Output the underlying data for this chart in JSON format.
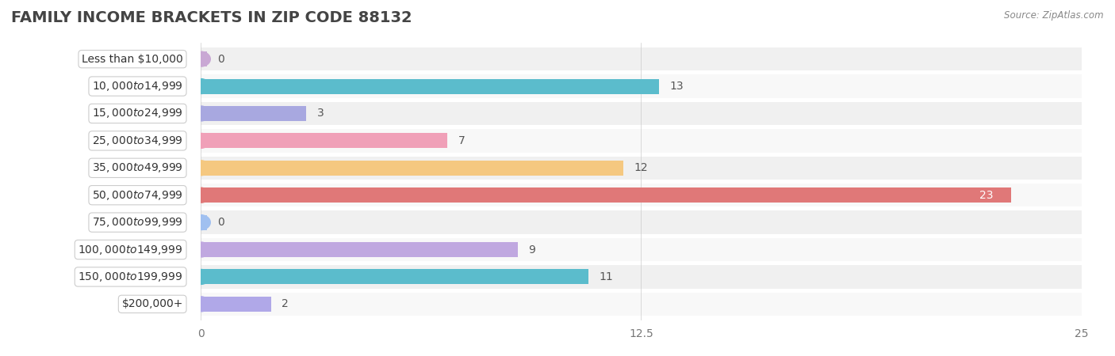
{
  "title": "FAMILY INCOME BRACKETS IN ZIP CODE 88132",
  "source": "Source: ZipAtlas.com",
  "categories": [
    "Less than $10,000",
    "$10,000 to $14,999",
    "$15,000 to $24,999",
    "$25,000 to $34,999",
    "$35,000 to $49,999",
    "$50,000 to $74,999",
    "$75,000 to $99,999",
    "$100,000 to $149,999",
    "$150,000 to $199,999",
    "$200,000+"
  ],
  "values": [
    0,
    13,
    3,
    7,
    12,
    23,
    0,
    9,
    11,
    2
  ],
  "bar_colors": [
    "#c9a8d4",
    "#5bbccc",
    "#a8a8e0",
    "#f0a0b8",
    "#f5c880",
    "#e07878",
    "#a0c0f0",
    "#c0a8e0",
    "#5bbccc",
    "#b0a8e8"
  ],
  "xlim": [
    0,
    25
  ],
  "xticks": [
    0,
    12.5,
    25
  ],
  "background_color": "#f5f5f5",
  "bar_row_bg": "#ececec",
  "title_fontsize": 14,
  "label_fontsize": 10,
  "value_fontsize": 10
}
